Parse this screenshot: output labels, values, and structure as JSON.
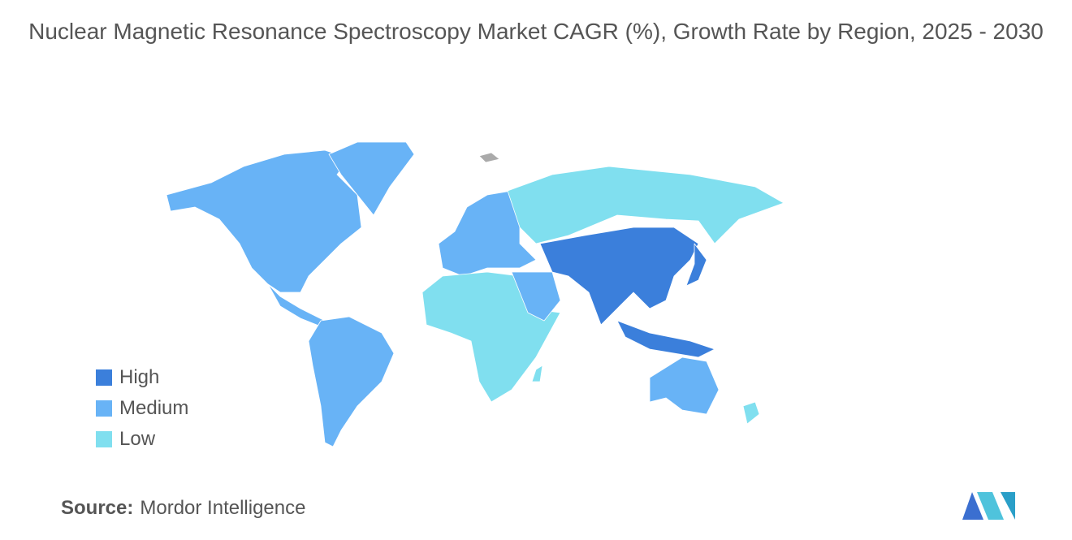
{
  "title": "Nuclear Magnetic Resonance Spectroscopy Market CAGR (%), Growth Rate by Region, 2025 - 2030",
  "legend": [
    {
      "label": "High",
      "color": "#3b7fdb"
    },
    {
      "label": "Medium",
      "color": "#68b3f6"
    },
    {
      "label": "Low",
      "color": "#80dfef"
    }
  ],
  "source": {
    "label": "Source:",
    "name": "Mordor Intelligence"
  }
}
